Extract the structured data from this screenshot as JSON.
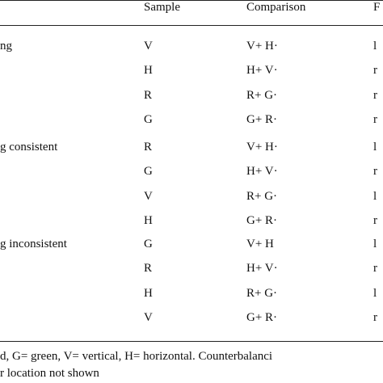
{
  "table": {
    "header": {
      "sample": "Sample",
      "comparison": "Comparison",
      "response": "F"
    },
    "groups": [
      {
        "label": "ng",
        "rows": [
          [
            "V",
            "V+ H·",
            "l"
          ],
          [
            "H",
            "H+ V·",
            "r"
          ],
          [
            "R",
            "R+ G·",
            "r"
          ],
          [
            "G",
            "G+ R·",
            "r"
          ]
        ]
      },
      {
        "label": "g consistent",
        "rows": [
          [
            "R",
            "V+ H·",
            "l"
          ],
          [
            "G",
            "H+ V·",
            "r"
          ],
          [
            "V",
            "R+ G·",
            "l"
          ],
          [
            "H",
            "G+ R·",
            "r"
          ]
        ]
      },
      {
        "label": "g inconsistent",
        "rows": [
          [
            "G",
            "V+ H",
            "l"
          ],
          [
            "R",
            "H+ V·",
            "r"
          ],
          [
            "H",
            "R+ G·",
            "l"
          ],
          [
            "V",
            "G+ R·",
            "r"
          ]
        ]
      }
    ],
    "footnote": [
      "d, G= green, V= vertical, H= horizontal. Counterbalanci",
      "r location not shown"
    ]
  }
}
